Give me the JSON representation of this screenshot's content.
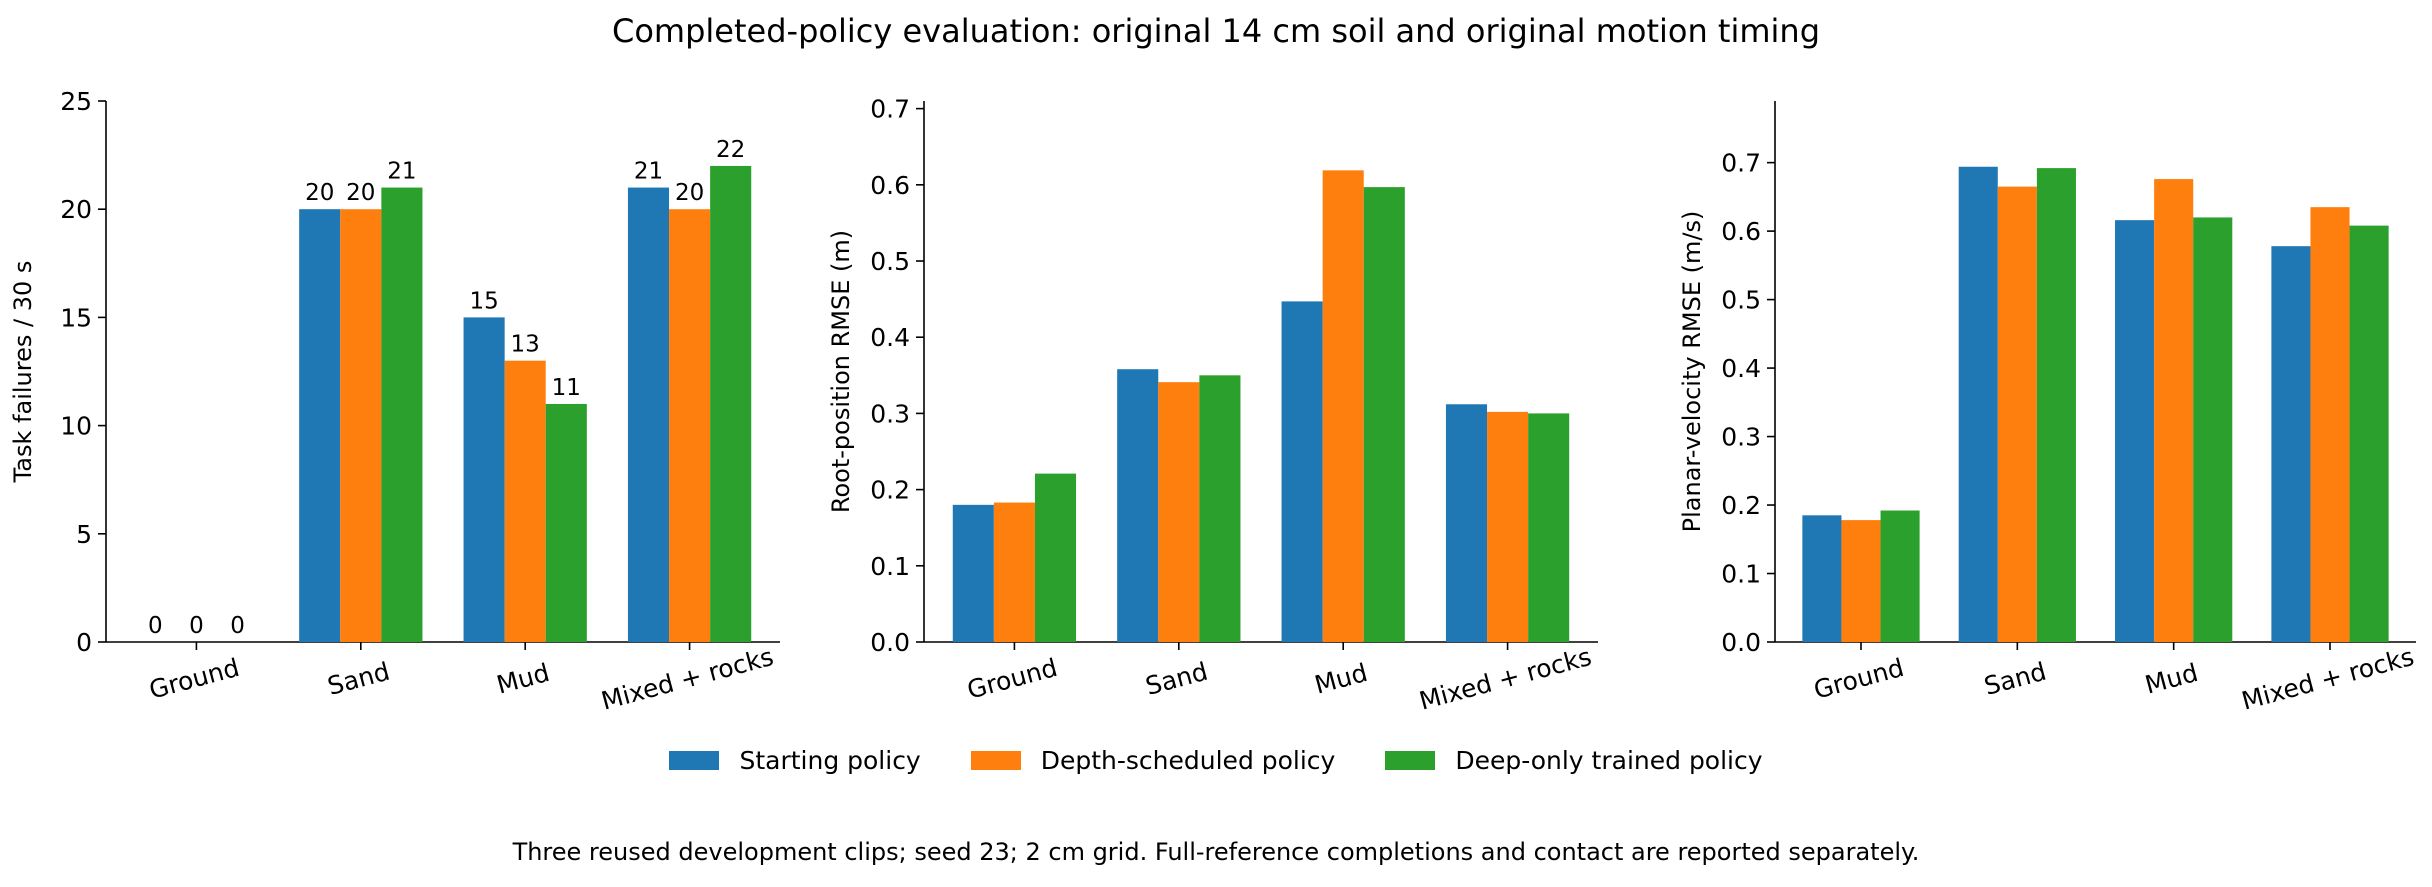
{
  "title": "Completed-policy evaluation: original 14 cm soil and original motion timing",
  "caption": "Three reused development clips; seed 23; 2 cm grid. Full-reference completions and contact are reported separately.",
  "colors": {
    "starting": "#1f77b4",
    "depth_scheduled": "#ff7f0e",
    "deep_only": "#2ca02c"
  },
  "legend": [
    {
      "label": "Starting policy",
      "color": "#1f77b4"
    },
    {
      "label": "Depth-scheduled policy",
      "color": "#ff7f0e"
    },
    {
      "label": "Deep-only trained policy",
      "color": "#2ca02c"
    }
  ],
  "chart_data": [
    {
      "type": "bar",
      "ylabel": "Task failures / 30 s",
      "categories": [
        "Ground",
        "Sand",
        "Mud",
        "Mixed + rocks"
      ],
      "ylim": [
        0,
        25
      ],
      "yticks": [
        "0",
        "5",
        "10",
        "15",
        "20",
        "25"
      ],
      "bar_labels": true,
      "series": [
        {
          "name": "Starting policy",
          "values": [
            0,
            20,
            15,
            21
          ]
        },
        {
          "name": "Depth-scheduled policy",
          "values": [
            0,
            20,
            13,
            20
          ]
        },
        {
          "name": "Deep-only trained policy",
          "values": [
            0,
            21,
            11,
            22
          ]
        }
      ]
    },
    {
      "type": "bar",
      "ylabel": "Root-position RMSE (m)",
      "categories": [
        "Ground",
        "Sand",
        "Mud",
        "Mixed + rocks"
      ],
      "ylim": [
        0,
        0.71
      ],
      "yticks": [
        "0.0",
        "0.1",
        "0.2",
        "0.3",
        "0.4",
        "0.5",
        "0.6",
        "0.7"
      ],
      "bar_labels": false,
      "series": [
        {
          "name": "Starting policy",
          "values": [
            0.18,
            0.358,
            0.447,
            0.312
          ]
        },
        {
          "name": "Depth-scheduled policy",
          "values": [
            0.183,
            0.341,
            0.619,
            0.302
          ]
        },
        {
          "name": "Deep-only trained policy",
          "values": [
            0.221,
            0.35,
            0.597,
            0.3
          ]
        }
      ]
    },
    {
      "type": "bar",
      "ylabel": "Planar-velocity RMSE (m/s)",
      "categories": [
        "Ground",
        "Sand",
        "Mud",
        "Mixed + rocks"
      ],
      "ylim": [
        0,
        0.79
      ],
      "yticks": [
        "0.0",
        "0.1",
        "0.2",
        "0.3",
        "0.4",
        "0.5",
        "0.6",
        "0.7"
      ],
      "bar_labels": false,
      "series": [
        {
          "name": "Starting policy",
          "values": [
            0.185,
            0.694,
            0.616,
            0.578
          ]
        },
        {
          "name": "Depth-scheduled policy",
          "values": [
            0.178,
            0.665,
            0.676,
            0.635
          ]
        },
        {
          "name": "Deep-only trained policy",
          "values": [
            0.192,
            0.692,
            0.62,
            0.608
          ]
        }
      ]
    }
  ]
}
